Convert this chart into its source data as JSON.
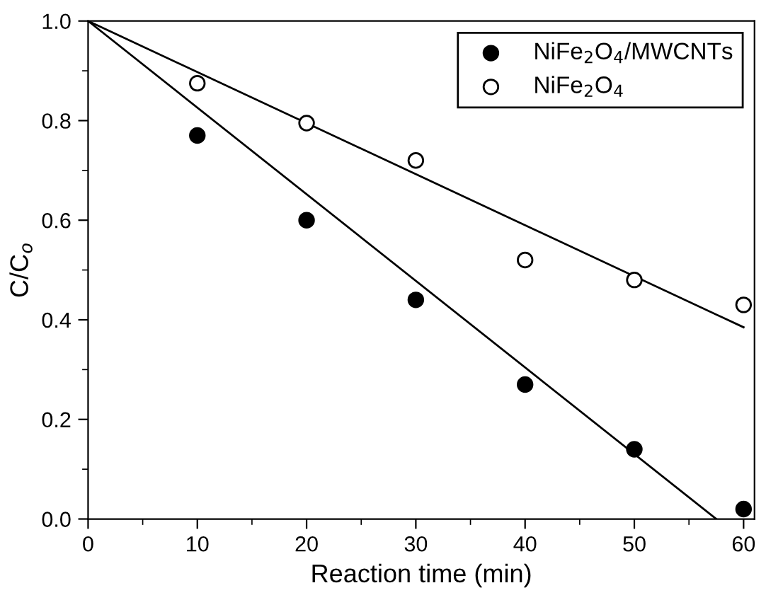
{
  "chart_data": {
    "type": "scatter",
    "xlabel": "Reaction time (min)",
    "ylabel": "C/C$_{o}$",
    "xlim": [
      0,
      61
    ],
    "ylim": [
      0,
      1
    ],
    "xticks": [
      0,
      10,
      20,
      30,
      40,
      50,
      60
    ],
    "yticks": [
      {
        "value": 0,
        "label": "0.0"
      },
      0.2,
      0.4,
      0.6,
      0.8,
      {
        "value": 1,
        "label": "1.0"
      }
    ],
    "grid": false,
    "legend": "top right",
    "marker": "circle",
    "series": [
      {
        "name": "NiFe$_{2}$O$_{4}$/MWCNTs",
        "color": "#000000",
        "x": [
          10,
          20,
          30,
          40,
          50,
          60
        ],
        "values": [
          0.77,
          0.6,
          0.44,
          0.27,
          0.14,
          0.02
        ]
      },
      {
        "name": "NiFe$_{2}$O$_{4}$",
        "color": "#ffffff",
        "x": [
          10,
          20,
          30,
          40,
          50,
          60
        ],
        "values": [
          0.875,
          0.795,
          0.72,
          0.52,
          0.48,
          0.43
        ]
      },
      {
        "type": "line",
        "color": "#000000",
        "marker": "none",
        "line_style": "solid",
        "x": [
          0,
          57.5
        ],
        "values": [
          1.0,
          0.0
        ]
      },
      {
        "type": "line",
        "color": "#000000",
        "marker": "none",
        "line_style": "solid",
        "x": [
          0,
          60
        ],
        "values": [
          1.0,
          0.385
        ]
      }
    ]
  }
}
